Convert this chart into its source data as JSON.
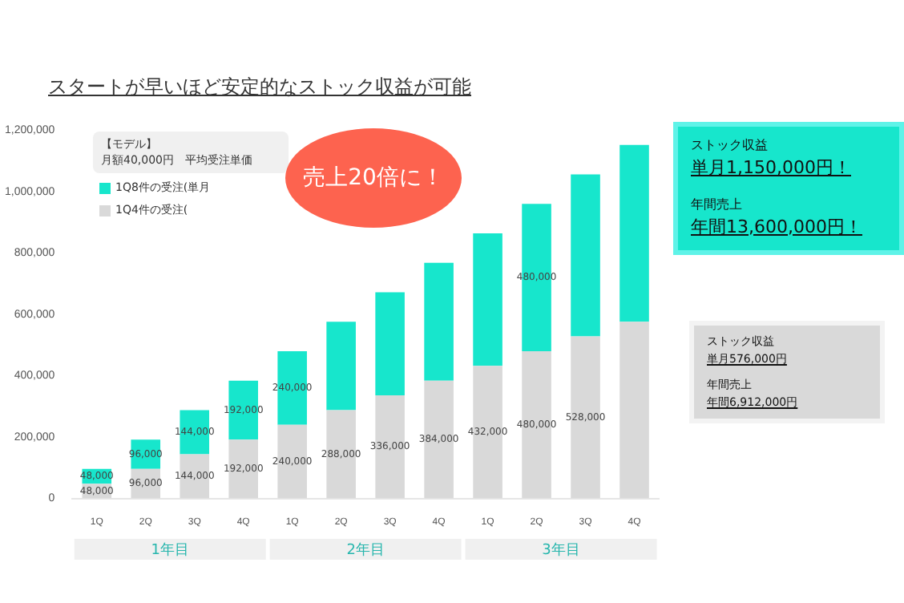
{
  "chart_data": {
    "type": "bar",
    "title": "スタートが早いほど安定的なストック収益が可能",
    "categories": [
      "1Q",
      "2Q",
      "3Q",
      "4Q",
      "1Q",
      "2Q",
      "3Q",
      "4Q",
      "1Q",
      "2Q",
      "3Q",
      "4Q"
    ],
    "stacked": true,
    "series": [
      {
        "name": "1Q4件の受注(",
        "color": "#d9d9d9",
        "values": [
          48000,
          96000,
          144000,
          192000,
          240000,
          288000,
          336000,
          384000,
          432000,
          480000,
          528000,
          576000
        ],
        "value_labels": [
          "48,000",
          "96,000",
          "144,000",
          "192,000",
          "240,000",
          "288,000",
          "336,000",
          "384,000",
          "432,000",
          "480,000",
          "528,000",
          null
        ]
      },
      {
        "name": "1Q8件の受注(単月",
        "color": "#17e6cc",
        "values": [
          48000,
          96000,
          144000,
          192000,
          240000,
          288000,
          336000,
          384000,
          432000,
          480000,
          528000,
          576000
        ],
        "value_labels": [
          "48,000",
          "96,000",
          "144,000",
          "192,000",
          "240,000",
          null,
          null,
          null,
          null,
          "480,000",
          null,
          null
        ]
      }
    ],
    "ylim": [
      0,
      1200000
    ],
    "yticks": [
      0,
      {
        "value": 200000,
        "label": "200,000"
      },
      {
        "value": 400000,
        "label": "400,000"
      },
      {
        "value": 600000,
        "label": "600,000"
      },
      {
        "value": 800000,
        "label": "800,000"
      },
      {
        "value": 1000000,
        "label": "1,000,000"
      },
      {
        "value": 1200000,
        "label": "1,200,000"
      }
    ],
    "legend": "top left",
    "annotations": [
      "1年目",
      "2年目",
      "3年目",
      "【モデル】",
      "月額40,000円　平均受注単価",
      "売上20倍に！",
      "ストック収益",
      "単月1,150,000円！",
      "年間売上",
      "年間13,600,000円！",
      "ストック収益",
      "単月576,000円",
      "年間売上",
      "年間6,912,000円"
    ]
  }
}
